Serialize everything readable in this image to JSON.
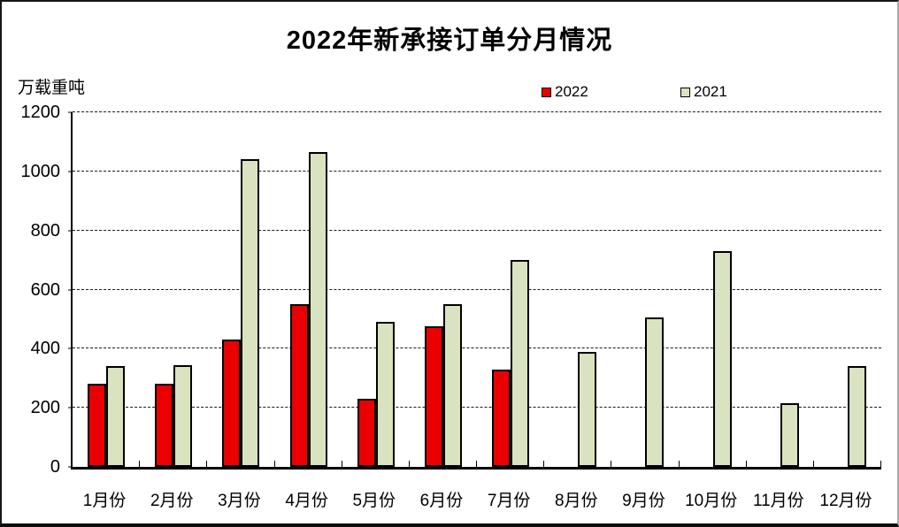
{
  "chart_data": {
    "type": "bar",
    "title": "2022年新承接订单分月情况",
    "unit_label": "万载重吨",
    "categories": [
      "1月份",
      "2月份",
      "3月份",
      "4月份",
      "5月份",
      "6月份",
      "7月份",
      "8月份",
      "9月份",
      "10月份",
      "11月份",
      "12月份"
    ],
    "series": [
      {
        "name": "2022",
        "color": "#ea0000",
        "values": [
          280,
          280,
          430,
          550,
          230,
          475,
          330,
          0,
          0,
          0,
          0,
          0
        ]
      },
      {
        "name": "2021",
        "color": "#d9e3c0",
        "values": [
          340,
          345,
          1040,
          1065,
          490,
          550,
          700,
          390,
          505,
          730,
          215,
          340
        ]
      }
    ],
    "ylim": [
      0,
      1200
    ],
    "ytick_step": 200,
    "ytick_labels": [
      "0",
      "200",
      "400",
      "600",
      "800",
      "1000",
      "1200"
    ],
    "grid": "horizontal-dashed",
    "legend_position": "top-center",
    "bar_border_color": "#000000",
    "background": "#ffffff"
  }
}
